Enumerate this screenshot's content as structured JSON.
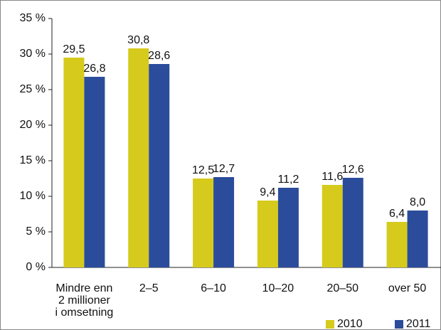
{
  "chart_data": {
    "type": "bar",
    "categories": [
      [
        "Mindre enn",
        "2 millioner",
        "i omsetning"
      ],
      "2–5",
      "6–10",
      "10–20",
      "20–50",
      "over 50"
    ],
    "series": [
      {
        "name": "2010",
        "color": "#d6ca1c",
        "values": [
          29.5,
          30.8,
          12.5,
          9.4,
          11.6,
          6.4
        ],
        "value_labels": [
          "29,5",
          "30,8",
          "12,5",
          "9,4",
          "11,6",
          "6,4"
        ]
      },
      {
        "name": "2011",
        "color": "#2b4c9b",
        "values": [
          26.8,
          28.6,
          12.7,
          11.2,
          12.6,
          8.0
        ],
        "value_labels": [
          "26,8",
          "28,6",
          "12,7",
          "11,2",
          "12,6",
          "8,0"
        ]
      }
    ],
    "ylim": [
      0,
      35
    ],
    "yticks": [
      {
        "value": 0,
        "label": "0 %"
      },
      {
        "value": 5,
        "label": "5 %"
      },
      {
        "value": 10,
        "label": "10 %"
      },
      {
        "value": 15,
        "label": "15 %"
      },
      {
        "value": 20,
        "label": "20 %"
      },
      {
        "value": 25,
        "label": "25 %"
      },
      {
        "value": 30,
        "label": "30 %"
      },
      {
        "value": 35,
        "label": "35 %"
      }
    ],
    "legend": "bottom-right"
  }
}
